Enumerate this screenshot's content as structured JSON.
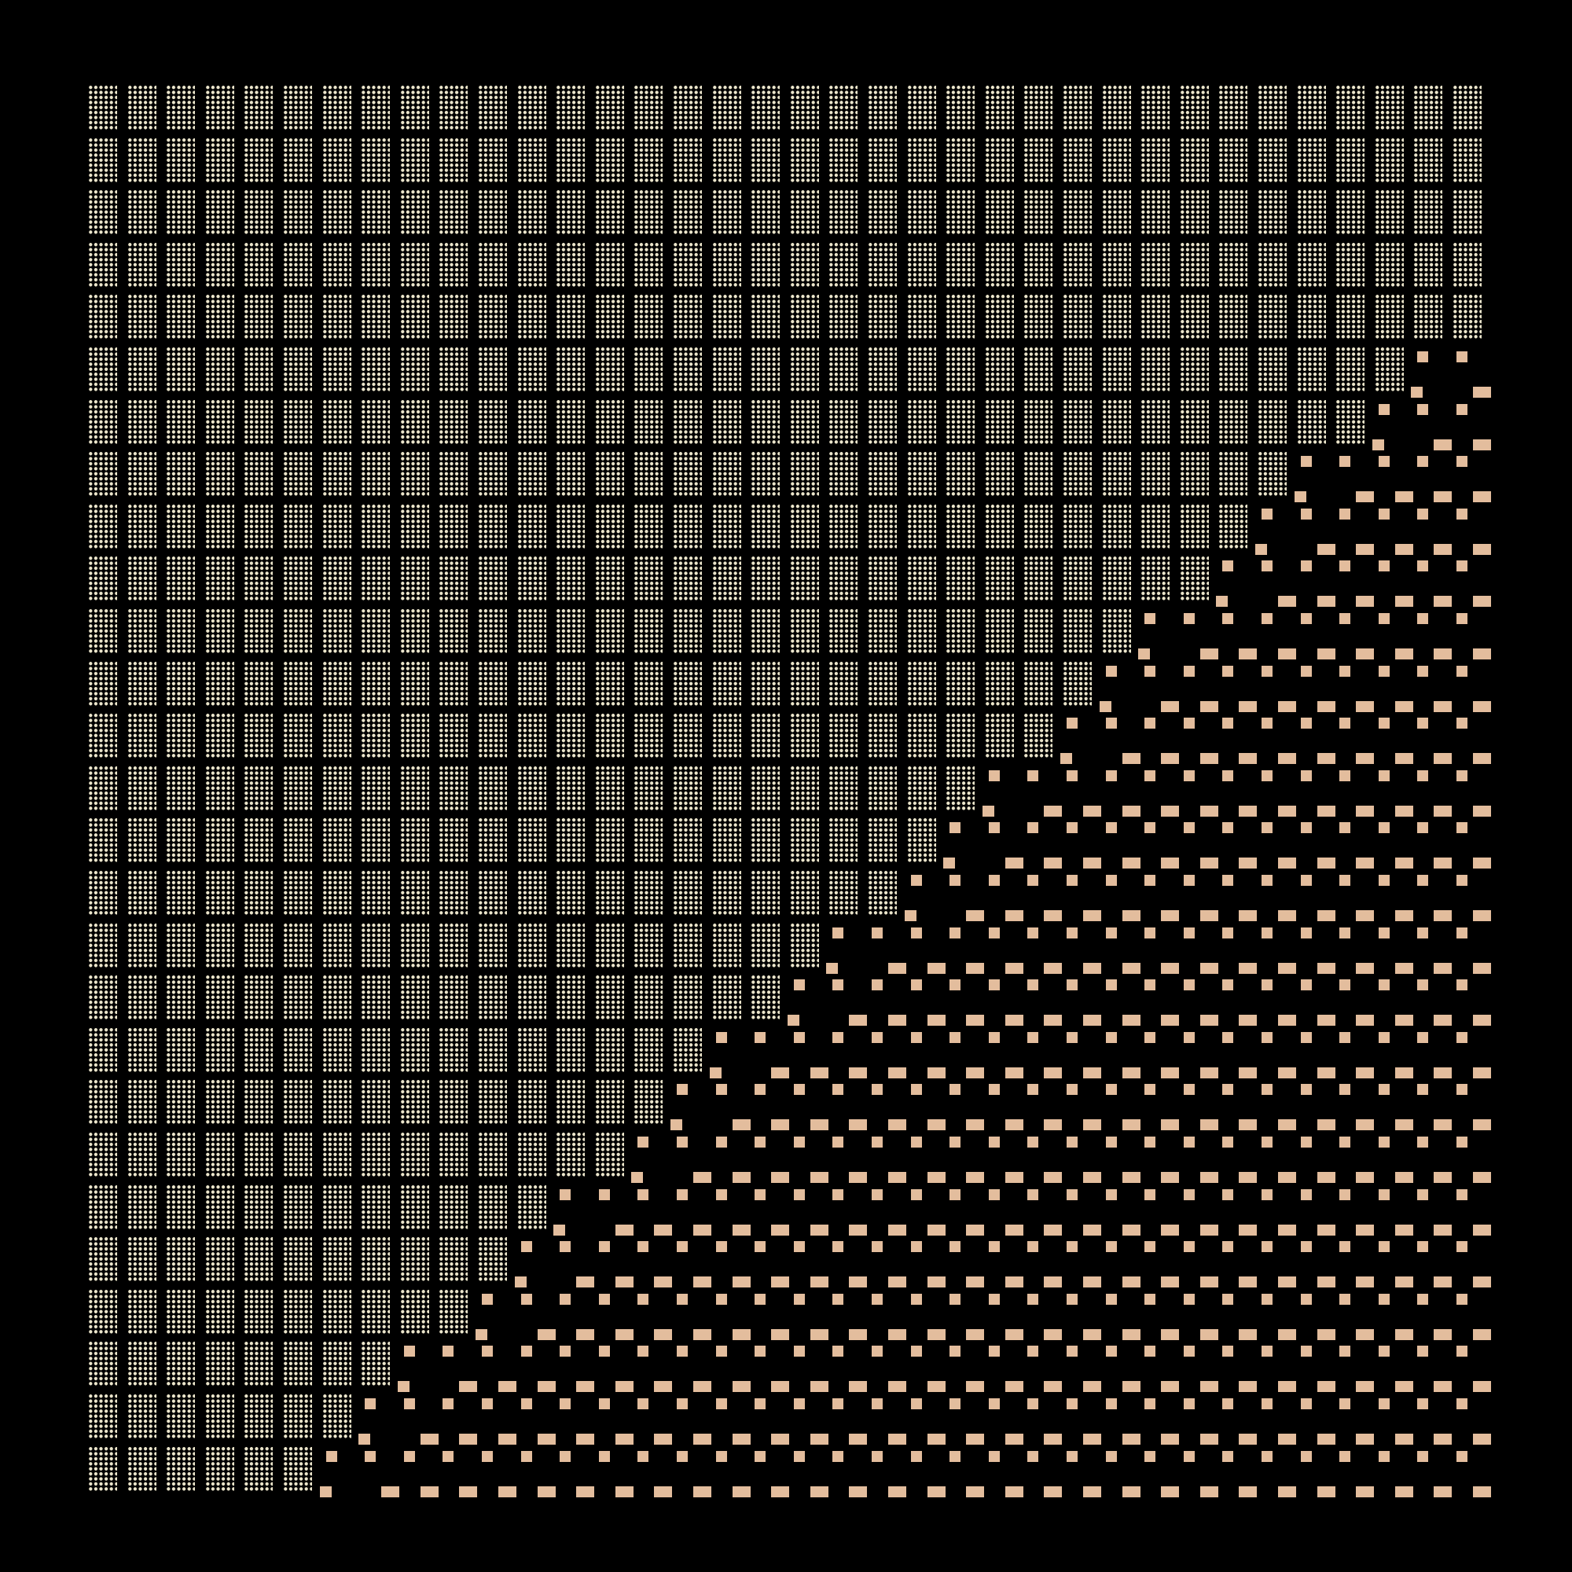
{
  "pattern": {
    "columns": 36,
    "rows": 27,
    "dotted_blocks_per_row": [
      36,
      36,
      36,
      36,
      36,
      34,
      33,
      31,
      30,
      29,
      27,
      26,
      25,
      23,
      22,
      21,
      19,
      18,
      16,
      15,
      14,
      12,
      11,
      10,
      8,
      7,
      6
    ],
    "colors": {
      "background": "#000000",
      "dots": "#ece6cc",
      "blocks": "#e3bd9d"
    }
  }
}
